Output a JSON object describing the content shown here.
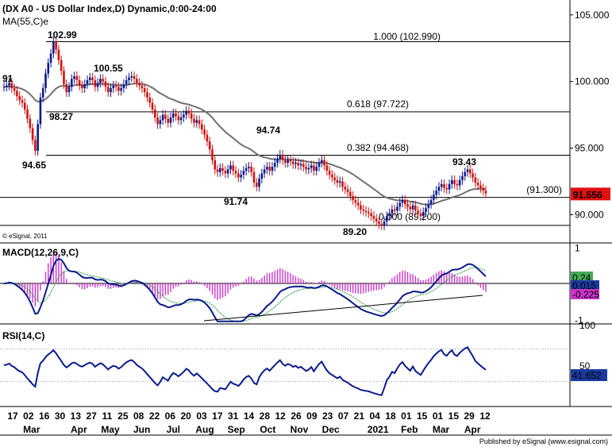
{
  "chart_data": [
    {
      "type": "candlestick",
      "title": "(DX A0 - US Dollar Index,D) Dynamic,0:00-24:00",
      "ma_label": "MA(55,C)e",
      "copyright": "© eSignal, 2011",
      "ylim": [
        88.0,
        106.0
      ],
      "y_ticks": [
        {
          "value": 105,
          "label": "105.000"
        },
        {
          "value": 100,
          "label": "100.000"
        },
        {
          "value": 95,
          "label": "95.000"
        },
        {
          "value": 90,
          "label": "90.000"
        }
      ],
      "last_price": "91.556",
      "fib_levels": [
        {
          "value": 102.99,
          "label": "1.000 (102.990)",
          "color": "#000000"
        },
        {
          "value": 97.722,
          "label": "0.618 (97.722)",
          "color": "#00a000"
        },
        {
          "value": 94.468,
          "label": "0.382 (94.468)",
          "color": "#c00000"
        },
        {
          "value": 91.3,
          "label": "(91.300)",
          "color": "#000000"
        },
        {
          "value": 89.2,
          "label": "0.000 (89.200)",
          "color": "#000000"
        }
      ],
      "annotations": [
        {
          "x": 15,
          "y": 102.99,
          "label": "102.99"
        },
        {
          "x": 35,
          "y": 100.55,
          "label": "100.55"
        },
        {
          "x": 12,
          "y": 98.27,
          "label": "98.27"
        },
        {
          "x": 2,
          "y": 94.65,
          "label": "94.65"
        },
        {
          "x": 92,
          "y": 94.74,
          "label": "94.74"
        },
        {
          "x": 81,
          "y": 91.74,
          "label": "91.74"
        },
        {
          "x": 124,
          "y": 89.2,
          "label": "89.20"
        },
        {
          "x": 163,
          "y": 93.43,
          "label": "93.43"
        },
        {
          "x": 0,
          "y": 99.91,
          "label": "91"
        }
      ],
      "price": [
        99.6,
        99.7,
        99.9,
        99.5,
        99.3,
        98.9,
        98.6,
        98.4,
        97.9,
        97.2,
        96.5,
        95.6,
        94.8,
        96.8,
        98.8,
        99.5,
        100.6,
        101.4,
        102.1,
        102.99,
        102.4,
        101.6,
        100.8,
        99.8,
        99.2,
        99.6,
        100.2,
        100.4,
        100.1,
        99.7,
        99.5,
        99.8,
        100.1,
        100.3,
        100.1,
        99.6,
        99.9,
        100.2,
        100.0,
        99.6,
        99.2,
        99.5,
        99.7,
        99.6,
        99.3,
        99.5,
        99.8,
        100.1,
        100.3,
        100.4,
        100.2,
        99.9,
        99.7,
        99.5,
        99.2,
        98.8,
        98.4,
        97.9,
        97.3,
        96.8,
        97.1,
        97.5,
        97.2,
        96.9,
        97.3,
        97.6,
        97.4,
        97.1,
        97.3,
        97.5,
        97.8,
        97.6,
        97.2,
        96.9,
        97.1,
        96.8,
        96.4,
        96.0,
        95.5,
        94.9,
        94.1,
        93.4,
        93.2,
        93.5,
        93.3,
        93.1,
        93.4,
        93.7,
        93.3,
        93.1,
        92.8,
        93.0,
        93.3,
        93.5,
        93.6,
        93.2,
        92.4,
        92.1,
        92.7,
        93.1,
        93.4,
        93.6,
        93.3,
        93.6,
        93.9,
        94.2,
        94.5,
        94.1,
        93.9,
        94.1,
        94.0,
        93.8,
        93.9,
        93.7,
        93.8,
        93.6,
        93.4,
        93.5,
        93.7,
        93.3,
        93.6,
        93.9,
        94.1,
        93.7,
        93.3,
        93.0,
        92.8,
        92.6,
        92.4,
        92.5,
        92.1,
        91.9,
        91.7,
        91.4,
        91.1,
        90.9,
        90.7,
        90.4,
        90.3,
        90.2,
        90.1,
        89.9,
        89.7,
        89.5,
        89.3,
        89.2,
        89.5,
        89.9,
        90.1,
        90.4,
        90.3,
        90.6,
        90.9,
        91.1,
        90.8,
        90.6,
        90.4,
        90.7,
        90.3,
        90.1,
        89.9,
        90.2,
        90.5,
        90.8,
        91.1,
        91.5,
        91.8,
        92.1,
        92.3,
        92.0,
        91.9,
        92.3,
        92.6,
        92.3,
        92.2,
        92.6,
        92.9,
        93.2,
        93.4,
        93.1,
        92.8,
        92.4,
        92.2,
        92.0,
        91.8,
        91.6
      ]
    },
    {
      "type": "macd",
      "label": "MACD(12,26,9,C)",
      "ylim": [
        -1.1,
        1.1
      ],
      "y_ticks": [
        {
          "value": 1,
          "label": "1"
        },
        {
          "value": -1,
          "label": "-1"
        }
      ],
      "values": {
        "macd": "0.24",
        "signal": "0.015",
        "hist": "-0.225"
      },
      "colors": {
        "macd_bg": "#44aa55",
        "signal_bg": "#1a3aa0",
        "hist_bg": "#cc33cc"
      }
    },
    {
      "type": "rsi",
      "label": "RSI(14,C)",
      "ylim": [
        0,
        100
      ],
      "y_ticks": [
        {
          "value": 100,
          "label": "100"
        },
        {
          "value": 50,
          "label": "50"
        }
      ],
      "value": "41.652",
      "levels": [
        70,
        30
      ]
    }
  ],
  "x_axis": {
    "days": [
      "17",
      "02",
      "16",
      "30",
      "13",
      "27",
      "11",
      "25",
      "08",
      "22",
      "06",
      "20",
      "03",
      "17",
      "31",
      "14",
      "28",
      "12",
      "26",
      "09",
      "23",
      "07",
      "21",
      "04",
      "18",
      "01",
      "15",
      "01",
      "15",
      "29",
      "12"
    ],
    "months": [
      {
        "label": "Mar",
        "index": 1
      },
      {
        "label": "Apr",
        "index": 4
      },
      {
        "label": "May",
        "index": 6
      },
      {
        "label": "Jun",
        "index": 8
      },
      {
        "label": "Jul",
        "index": 10
      },
      {
        "label": "Aug",
        "index": 12
      },
      {
        "label": "Sep",
        "index": 14
      },
      {
        "label": "Oct",
        "index": 16
      },
      {
        "label": "Nov",
        "index": 18
      },
      {
        "label": "Dec",
        "index": 20
      },
      {
        "label": "2021",
        "index": 23
      },
      {
        "label": "Feb",
        "index": 25
      },
      {
        "label": "Mar",
        "index": 27
      },
      {
        "label": "Apr",
        "index": 29
      }
    ]
  },
  "footer": "Published by eSignal (www.esignal.com)"
}
